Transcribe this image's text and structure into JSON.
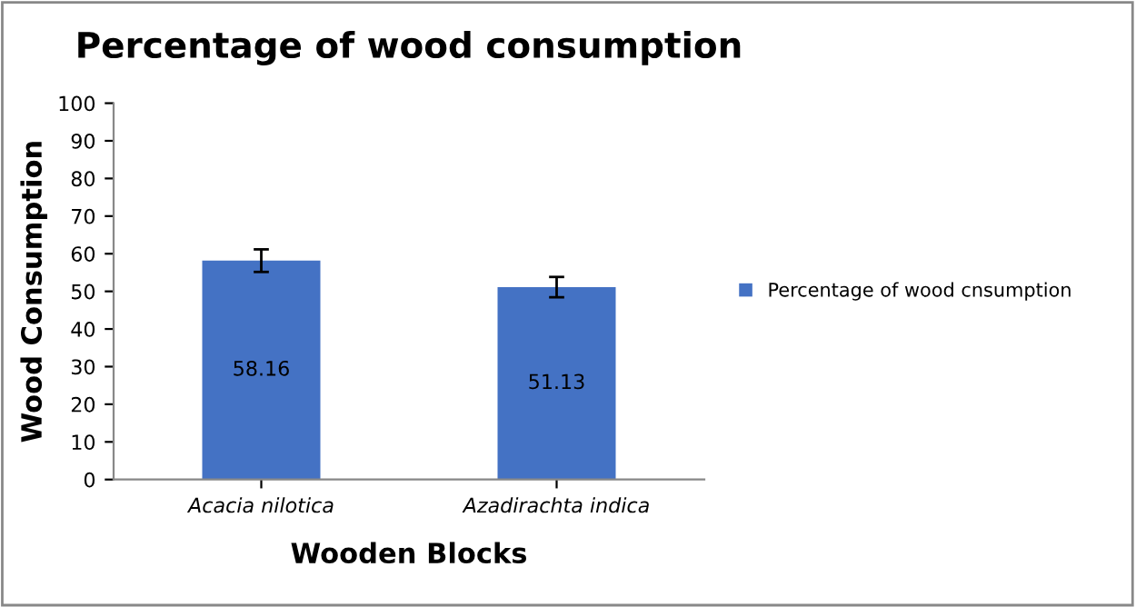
{
  "chart_data": {
    "type": "bar",
    "title": "Percentage of wood consumption",
    "xlabel": "Wooden Blocks",
    "ylabel": "Wood Consumption",
    "categories": [
      "Acacia nilotica",
      "Azadirachta indica"
    ],
    "series": [
      {
        "name": "Percentage of wood cnsumption",
        "color": "#4472c4",
        "values": [
          58.16,
          51.13
        ],
        "errors": [
          3,
          2.7
        ]
      }
    ],
    "data_labels": true,
    "ylim": [
      0,
      100
    ],
    "yticks": [
      0,
      10,
      20,
      30,
      40,
      50,
      60,
      70,
      80,
      90,
      100
    ],
    "grid": false,
    "legend": "right"
  }
}
